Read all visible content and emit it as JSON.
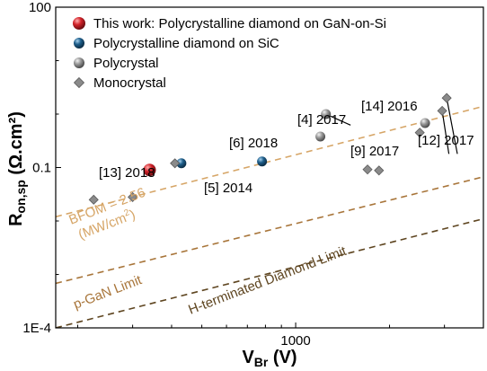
{
  "chart_data": {
    "type": "scatter",
    "x_scale": "log",
    "y_scale": "log",
    "xlim": [
      170,
      4000
    ],
    "ylim": [
      0.0001,
      100
    ],
    "xlabel_main": "V",
    "xlabel_sub": "Br",
    "xlabel_unit": " (V)",
    "ylabel_main": "R",
    "ylabel_sub": "on,sp",
    "ylabel_unit": " (Ω.cm²)",
    "x_ticks": [
      {
        "value": 1000,
        "label": "1000"
      }
    ],
    "y_ticks": [
      {
        "value": 100,
        "label": "100"
      },
      {
        "value": 0.1,
        "label": "0.1"
      },
      {
        "value": 0.0001,
        "label": "1E-4"
      }
    ],
    "legend": {
      "placement": "top-left",
      "entries": [
        {
          "label": "This work: Polycrystalline diamond on GaN-on-Si",
          "marker": "sphere",
          "color": "#d2232a"
        },
        {
          "label": "Polycrystalline diamond on SiC",
          "marker": "sphere",
          "color": "#1f5f8b"
        },
        {
          "label": "Polycrystal",
          "marker": "sphere",
          "color": "#9a9a9a"
        },
        {
          "label": "Monocrystal",
          "marker": "diamond",
          "color": "#8a8a8a"
        }
      ]
    },
    "series": [
      {
        "name": "This work: Polycrystalline diamond on GaN-on-Si",
        "marker": "sphere",
        "color": "#d2232a",
        "points": [
          {
            "x": 340,
            "y": 0.09
          }
        ]
      },
      {
        "name": "Polycrystalline diamond on SiC",
        "marker": "sphere",
        "color": "#1f5f8b",
        "points": [
          {
            "x": 430,
            "y": 0.12
          },
          {
            "x": 780,
            "y": 0.13
          }
        ]
      },
      {
        "name": "Polycrystal",
        "marker": "sphere",
        "color": "#9a9a9a",
        "points": [
          {
            "x": 1250,
            "y": 1.0
          },
          {
            "x": 1200,
            "y": 0.38
          },
          {
            "x": 2600,
            "y": 0.68
          }
        ]
      },
      {
        "name": "Monocrystal",
        "marker": "diamond",
        "color": "#8a8a8a",
        "points": [
          {
            "x": 225,
            "y": 0.025
          },
          {
            "x": 300,
            "y": 0.028
          },
          {
            "x": 410,
            "y": 0.12
          },
          {
            "x": 1700,
            "y": 0.092
          },
          {
            "x": 1850,
            "y": 0.088
          },
          {
            "x": 2500,
            "y": 0.45
          },
          {
            "x": 2950,
            "y": 1.15
          },
          {
            "x": 3050,
            "y": 2.0
          }
        ]
      }
    ],
    "lines": [
      {
        "label": "BFOM = 2.56 (MW/cm²)",
        "label_line1": "BFOM = 2.56",
        "label_line2": "(MW/cm²)",
        "color": "#d6a566",
        "points": [
          {
            "x": 170,
            "y": 0.012
          },
          {
            "x": 4000,
            "y": 1.4
          }
        ]
      },
      {
        "label": "p-GaN Limit",
        "color": "#a8753a",
        "points": [
          {
            "x": 170,
            "y": 0.00068
          },
          {
            "x": 4000,
            "y": 0.067
          }
        ]
      },
      {
        "label": "H-terminated Diamond Limit",
        "color": "#5e4520",
        "points": [
          {
            "x": 170,
            "y": 0.0001
          },
          {
            "x": 4000,
            "y": 0.011
          }
        ]
      }
    ],
    "annotations": [
      {
        "text": "[13] 2018"
      },
      {
        "text": "[5] 2014"
      },
      {
        "text": "[6] 2018"
      },
      {
        "text": "[4] 2017"
      },
      {
        "text": "[14] 2016"
      },
      {
        "text": "[9] 2017"
      },
      {
        "text": "[12] 2017"
      }
    ],
    "leader_lines": [
      {
        "from": {
          "x": 1250,
          "y": 1.0
        },
        "to": {
          "x": 1500,
          "y": 0.62
        }
      },
      {
        "from": {
          "x": 2950,
          "y": 1.15
        },
        "to": {
          "x": 3100,
          "y": 0.18
        }
      },
      {
        "from": {
          "x": 3050,
          "y": 2.0
        },
        "to": {
          "x": 3300,
          "y": 0.18
        }
      }
    ]
  }
}
